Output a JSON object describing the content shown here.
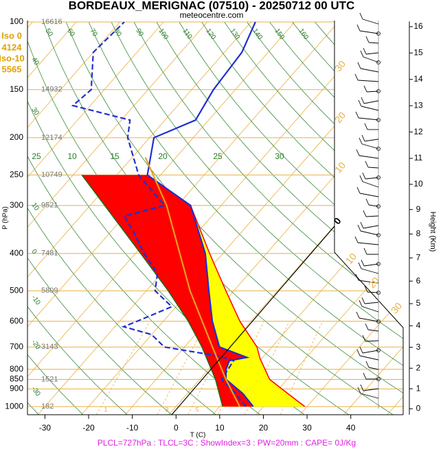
{
  "chart_data": {
    "type": "skewt",
    "title": "BORDEAUX_MERIGNAC (07510) - 20250712 00 UTC",
    "subtitle": "meteocentre.com",
    "y_label": "P (hPa)",
    "x_label": "T (C)",
    "y2_label": "Height (Km)",
    "footer": "PLCL=727hPa : TLCL=3C : ShowIndex=3 : PW=20mm : CAPE= 0J/Kg",
    "iso_texts": [
      "Iso 0",
      "4124",
      "Iso-10",
      "5565"
    ],
    "yscale": "log",
    "ylim": [
      100,
      1050
    ],
    "yticks": [
      100,
      150,
      200,
      250,
      300,
      400,
      500,
      600,
      700,
      800,
      850,
      900,
      1000
    ],
    "xlim": [
      -34,
      52
    ],
    "xticks": [
      -30,
      -20,
      -10,
      0,
      10,
      20,
      30,
      40
    ],
    "y2lim": [
      -0.3,
      16.2
    ],
    "y2ticks": [
      0,
      1,
      2,
      3,
      4,
      5,
      6,
      7,
      8,
      9,
      10,
      11,
      12,
      13,
      14,
      15,
      16
    ],
    "grid": true,
    "geopotential": {
      "pressures": [
        100,
        150,
        200,
        250,
        300,
        400,
        500,
        700,
        850,
        1000
      ],
      "values": [
        16616,
        14932,
        12174,
        10749,
        9521,
        7481,
        5809,
        3143,
        1521,
        182
      ]
    },
    "theta_labels": [
      "50",
      "60",
      "70",
      "80",
      "90",
      "100",
      "110",
      "120",
      "130",
      "140",
      "150",
      "160"
    ],
    "left_labels": [
      "40",
      "30",
      "10",
      "0",
      "-10",
      "-20",
      "-30"
    ],
    "moist_labels": [
      "25",
      "10",
      "15",
      "20",
      "25",
      "30"
    ],
    "isotherm_labels": [
      "30",
      "20",
      "10",
      "0",
      "10",
      "20",
      "30"
    ],
    "mixing_labels": [
      "1",
      "3",
      "5"
    ],
    "series": [
      {
        "color": "#ff0000",
        "fill": "#ffff00",
        "x": [
          29.5,
          23,
          16,
          9.6,
          6.6,
          -2.5,
          -11.8,
          -23,
          -37
        ],
        "values": [
          1000,
          925,
          850,
          750,
          700,
          600,
          500,
          400,
          300
        ]
      },
      {
        "color": "#1a6a1a",
        "fill": "#ff0000",
        "x": [
          10.7,
          3.6,
          -6,
          -14.3,
          -25,
          -38.8,
          -68
        ],
        "values": [
          1000,
          850,
          700,
          600,
          500,
          400,
          250
        ]
      },
      {
        "color": "#1f2fd0",
        "x": [
          17.7,
          12.7,
          6,
          4,
          3,
          6.4,
          -2,
          -8.8,
          -15.7,
          -24,
          -37,
          -53,
          -59,
          -53,
          -55,
          -56,
          -59
        ],
        "values": [
          1000,
          925,
          850,
          800,
          760,
          745,
          700,
          600,
          500,
          400,
          300,
          250,
          200,
          180,
          150,
          120,
          100
        ]
      },
      {
        "color": "#1f2fd0",
        "dashed": true,
        "x": [
          16,
          11,
          5,
          4,
          0,
          -14.6,
          -20,
          -28,
          -26,
          -21,
          -28,
          -31,
          -38,
          -45,
          -50,
          -43,
          -55,
          -65,
          -68,
          -84,
          -83,
          -90,
          -89
        ],
        "values": [
          1000,
          925,
          850,
          760,
          740,
          700,
          650,
          620,
          600,
          550,
          500,
          450,
          400,
          350,
          320,
          300,
          250,
          200,
          180,
          165,
          150,
          120,
          100
        ]
      },
      {
        "color": "#e8a020",
        "x": [
          14.6,
          6,
          -3.6,
          -20,
          -42.5,
          -57
        ],
        "values": [
          1000,
          850,
          700,
          500,
          300,
          225
        ]
      }
    ]
  }
}
